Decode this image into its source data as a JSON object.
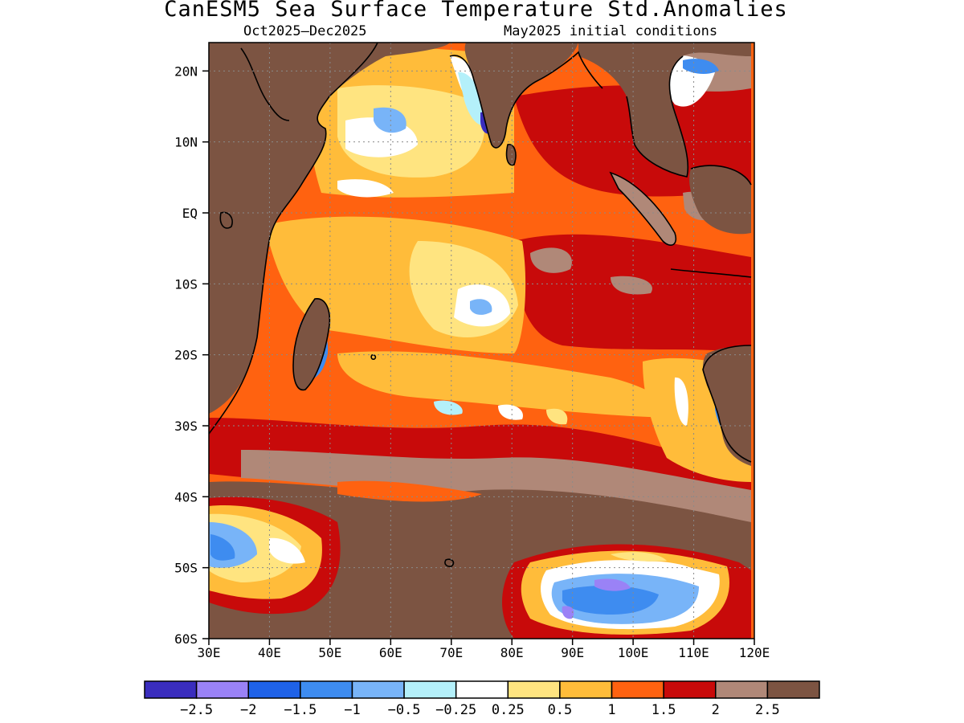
{
  "title": "CanESM5 Sea Surface Temperature Std.Anomalies",
  "subtitle_left": "Oct2025–Dec2025",
  "subtitle_right": "May2025 initial conditions",
  "map": {
    "lon_range": [
      30,
      120
    ],
    "lat_range": [
      -60,
      24
    ],
    "lat_ticks": [
      {
        "value": 20,
        "label": "20N"
      },
      {
        "value": 10,
        "label": "10N"
      },
      {
        "value": 0,
        "label": "EQ"
      },
      {
        "value": -10,
        "label": "10S"
      },
      {
        "value": -20,
        "label": "20S"
      },
      {
        "value": -30,
        "label": "30S"
      },
      {
        "value": -40,
        "label": "40S"
      },
      {
        "value": -50,
        "label": "50S"
      },
      {
        "value": -60,
        "label": "60S"
      }
    ],
    "lon_ticks": [
      {
        "value": 30,
        "label": "30E"
      },
      {
        "value": 40,
        "label": "40E"
      },
      {
        "value": 50,
        "label": "50E"
      },
      {
        "value": 60,
        "label": "60E"
      },
      {
        "value": 70,
        "label": "70E"
      },
      {
        "value": 80,
        "label": "80E"
      },
      {
        "value": 90,
        "label": "90E"
      },
      {
        "value": 100,
        "label": "100E"
      },
      {
        "value": 110,
        "label": "110E"
      },
      {
        "value": 120,
        "label": "120E"
      }
    ]
  },
  "colorbar": {
    "colors": [
      "#3a2dbe",
      "#9a82f6",
      "#1f62e8",
      "#3e8cf0",
      "#78b4f8",
      "#b4f0fa",
      "#ffffff",
      "#ffe480",
      "#ffbc3a",
      "#ff6210",
      "#c80a0a",
      "#b08878",
      "#7c5442"
    ],
    "labels": [
      "−2.5",
      "−2",
      "−1.5",
      "−1",
      "−0.5",
      "−0.25",
      "0.25",
      "0.5",
      "1",
      "1.5",
      "2",
      "2.5"
    ]
  }
}
